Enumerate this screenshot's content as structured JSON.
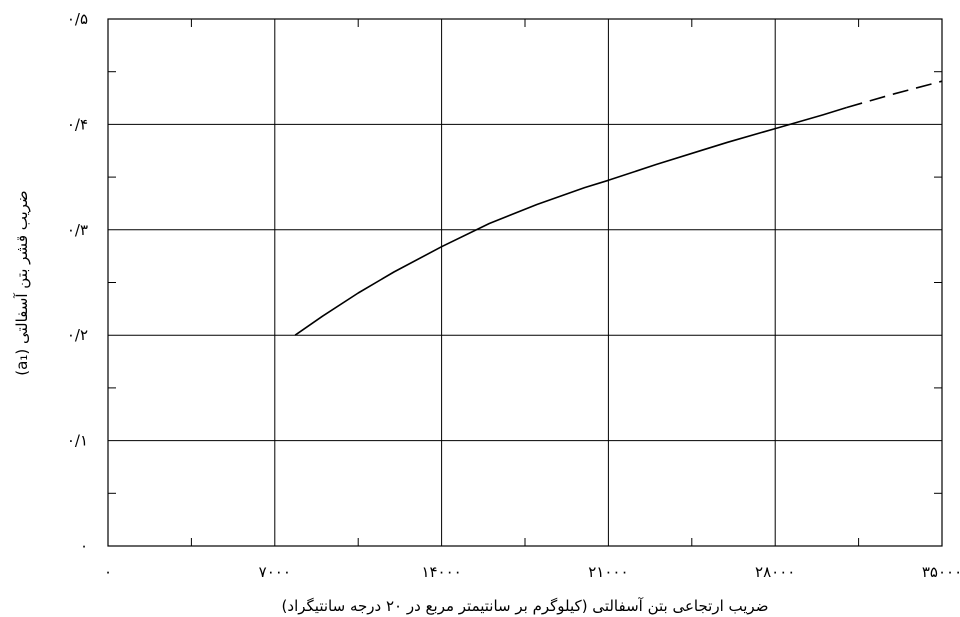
{
  "chart_data": {
    "type": "line",
    "title": "",
    "xlabel": "ضریب ارتجاعی بتن آسفالتی (کیلوگرم بر سانتیمتر مربع در ۲۰ درجه سانتیگراد)",
    "ylabel": "ضریب قشر بتن آسفالتی (a₁)",
    "xlim": [
      0,
      35000
    ],
    "ylim": [
      0,
      0.5
    ],
    "x_ticks": [
      0,
      7000,
      14000,
      21000,
      28000,
      35000
    ],
    "x_tick_labels": [
      "۰",
      "۷۰۰۰",
      "۱۴۰۰۰",
      "۲۱۰۰۰",
      "۲۸۰۰۰",
      "۳۵۰۰۰"
    ],
    "y_ticks": [
      0,
      0.1,
      0.2,
      0.3,
      0.4,
      0.5
    ],
    "y_tick_labels": [
      "۰",
      "۰/۱",
      "۰/۲",
      "۰/۳",
      "۰/۴",
      "۰/۵"
    ],
    "grid": true,
    "series": [
      {
        "x": [
          7850,
          9000,
          10500,
          12000,
          14000,
          16000,
          18000,
          20000,
          21000,
          23000,
          25000,
          26000,
          28000,
          30000,
          31000
        ],
        "y": [
          0.2,
          0.218,
          0.24,
          0.26,
          0.284,
          0.306,
          0.324,
          0.34,
          0.347,
          0.362,
          0.376,
          0.383,
          0.396,
          0.409,
          0.416
        ],
        "style": "solid"
      },
      {
        "x": [
          31000,
          33000,
          35000
        ],
        "y": [
          0.416,
          0.429,
          0.441
        ],
        "style": "dashed"
      }
    ]
  }
}
